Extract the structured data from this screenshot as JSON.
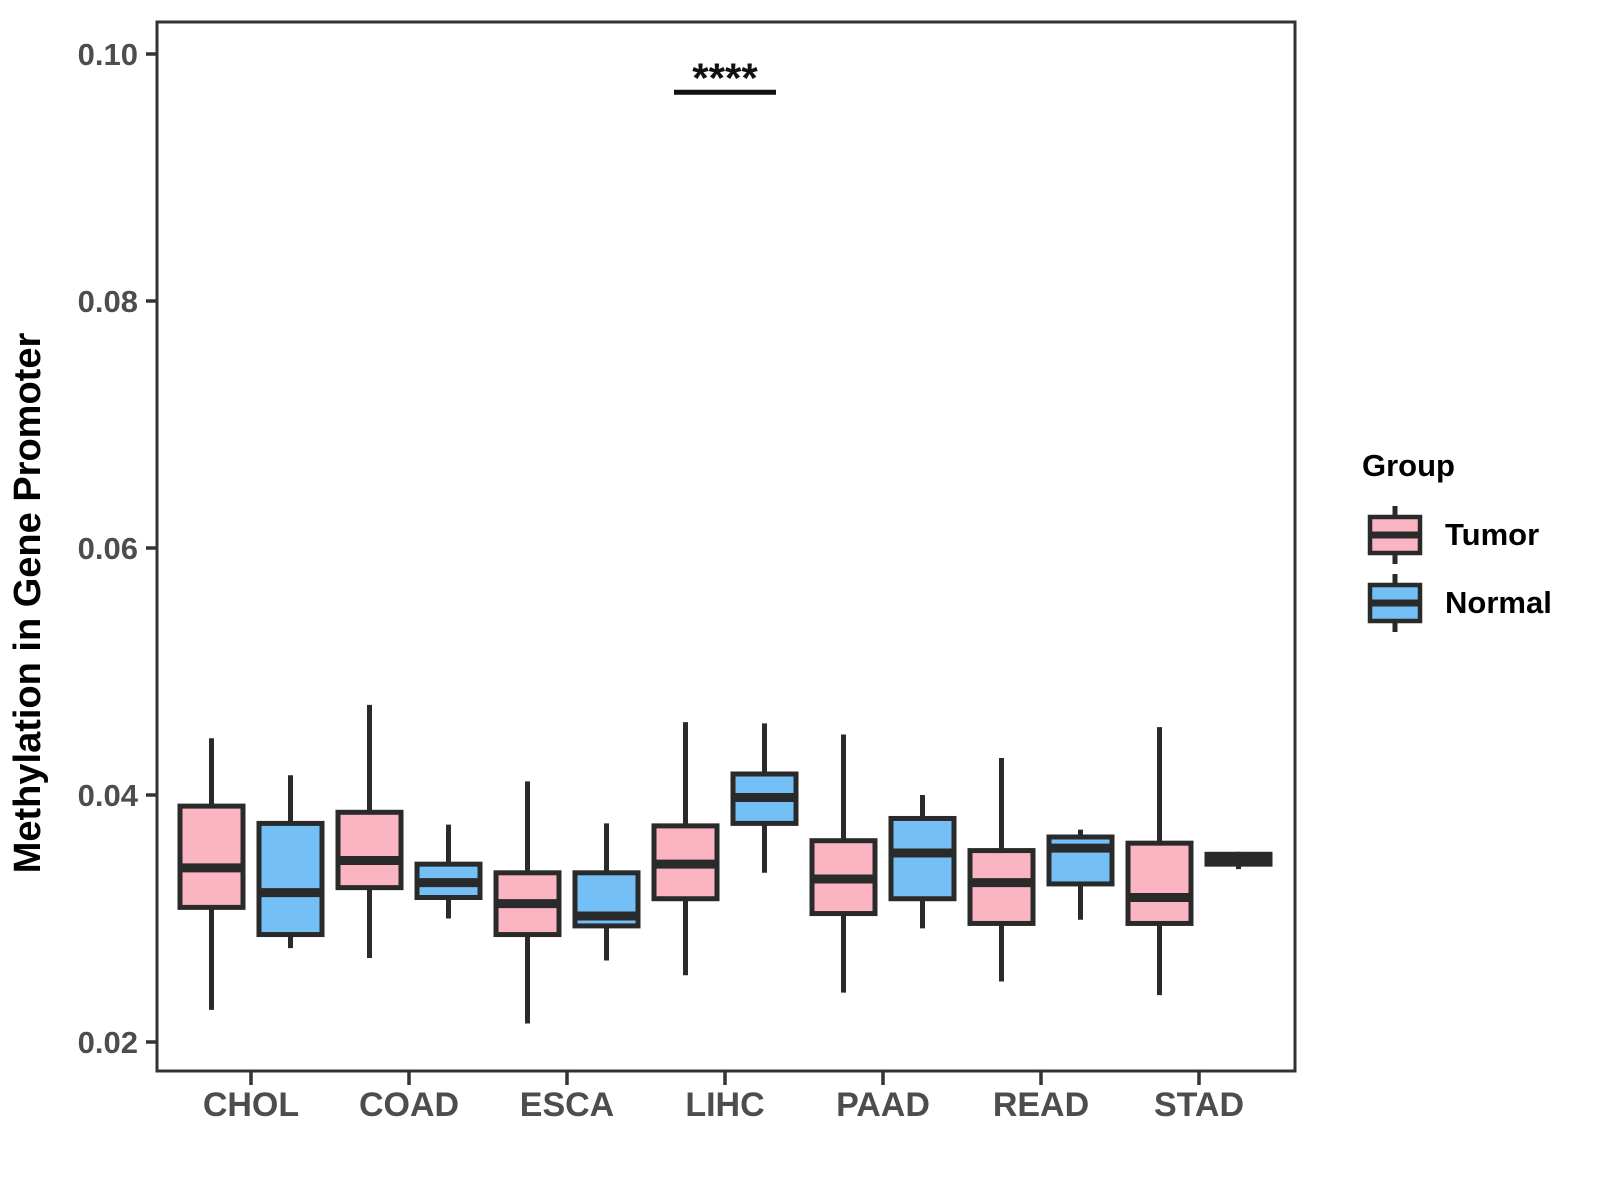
{
  "chart_data": {
    "type": "boxplot",
    "title": "",
    "xlabel": "",
    "ylabel": "Methylation in Gene Promoter",
    "categories": [
      "CHOL",
      "COAD",
      "ESCA",
      "LIHC",
      "PAAD",
      "READ",
      "STAD"
    ],
    "y_ticks": [
      0.02,
      0.04,
      0.06,
      0.08,
      0.1
    ],
    "y_tick_labels": [
      "0.02",
      "0.04",
      "0.06",
      "0.08",
      "0.10"
    ],
    "ylim": [
      0.0177,
      0.1026
    ],
    "grid": "off",
    "stats_order": [
      "whisker_low",
      "q1",
      "median",
      "q3",
      "whisker_high"
    ],
    "series": [
      {
        "name": "Tumor",
        "fill": "#FBB4C2",
        "boxes": [
          [
            0.0226,
            0.0309,
            0.0341,
            0.0391,
            0.0446
          ],
          [
            0.0268,
            0.0325,
            0.0347,
            0.0386,
            0.0473
          ],
          [
            0.0215,
            0.0287,
            0.0312,
            0.0337,
            0.0411
          ],
          [
            0.0254,
            0.0316,
            0.0344,
            0.0375,
            0.0459
          ],
          [
            0.024,
            0.0304,
            0.0332,
            0.0363,
            0.0449
          ],
          [
            0.0249,
            0.0296,
            0.0329,
            0.0355,
            0.043
          ],
          [
            0.0238,
            0.0296,
            0.0317,
            0.0361,
            0.0455
          ]
        ]
      },
      {
        "name": "Normal",
        "fill": "#74C0F6",
        "boxes": [
          [
            0.0276,
            0.0287,
            0.0321,
            0.0377,
            0.0416
          ],
          [
            0.03,
            0.0317,
            0.0329,
            0.0344,
            0.0376
          ],
          [
            0.0266,
            0.0294,
            0.0302,
            0.0337,
            0.0377
          ],
          [
            0.0337,
            0.0377,
            0.0398,
            0.0417,
            0.0458
          ],
          [
            0.0292,
            0.0316,
            0.0353,
            0.0381,
            0.04
          ],
          [
            0.0299,
            0.0328,
            0.0357,
            0.0366,
            0.0372
          ],
          [
            0.034,
            0.0344,
            0.0348,
            0.0352,
            0.0354
          ]
        ]
      }
    ],
    "annotation": {
      "label": "****",
      "category": "LIHC",
      "text_y": 0.0986,
      "line_y": 0.0969
    },
    "legend": {
      "title": "Group",
      "position": "right",
      "items": [
        "Tumor",
        "Normal"
      ]
    },
    "colors": {
      "box_outline": "#2A2A2A",
      "axis_line": "#333333",
      "tick_label": "#4D4D4D",
      "annotation_text": "#111111"
    }
  }
}
